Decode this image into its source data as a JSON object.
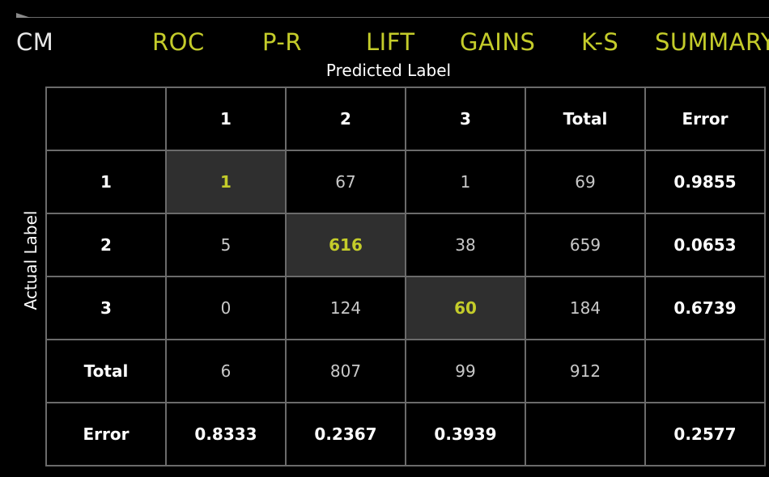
{
  "tabs": [
    {
      "label": "CM",
      "active": true
    },
    {
      "label": "ROC",
      "active": false
    },
    {
      "label": "P-R",
      "active": false
    },
    {
      "label": "LIFT",
      "active": false
    },
    {
      "label": "GAINS",
      "active": false
    },
    {
      "label": "K-S",
      "active": false
    },
    {
      "label": "SUMMARY",
      "active": false
    }
  ],
  "axis": {
    "predicted": "Predicted Label",
    "actual": "Actual Label"
  },
  "matrix": {
    "header": [
      "",
      "1",
      "2",
      "3",
      "Total",
      "Error"
    ],
    "rows": [
      {
        "label": "1",
        "cells": [
          "1",
          "67",
          "1",
          "69",
          "0.9855"
        ]
      },
      {
        "label": "2",
        "cells": [
          "5",
          "616",
          "38",
          "659",
          "0.0653"
        ]
      },
      {
        "label": "3",
        "cells": [
          "0",
          "124",
          "60",
          "184",
          "0.6739"
        ]
      },
      {
        "label": "Total",
        "cells": [
          "6",
          "807",
          "99",
          "912",
          ""
        ]
      },
      {
        "label": "Error",
        "cells": [
          "0.8333",
          "0.2367",
          "0.3939",
          "",
          "0.2577"
        ]
      }
    ]
  },
  "colors": {
    "accent": "#c4cc2a",
    "diagonal_bg": "#2f2f2f",
    "grid": "#6b6b6b",
    "background": "#000000"
  }
}
